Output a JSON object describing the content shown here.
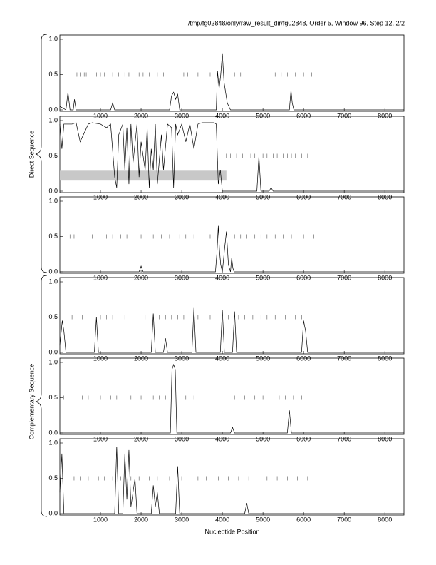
{
  "page": {
    "title": "/tmp/fg02848/only/raw_result_dir/fg02848, Order 5, Window 96, Step 12, 2/2",
    "xlabel": "Nucleotide Position",
    "group_labels": [
      "Direct Sequence",
      "Complementary Sequence"
    ]
  },
  "chart_data": [
    {
      "type": "line",
      "color": "#000000",
      "marker_color": "#555555",
      "marker_level": 0.5,
      "xlim": [
        0,
        8470
      ],
      "ylim": [
        0,
        1
      ],
      "xticks": [
        1000,
        2000,
        3000,
        4000,
        5000,
        6000,
        7000,
        8000
      ],
      "yticks": [
        {
          "value": 0,
          "label": "0.0"
        },
        0.5,
        {
          "value": 1,
          "label": "1.0"
        }
      ],
      "x": [
        0,
        150,
        200,
        250,
        330,
        360,
        400,
        1250,
        1300,
        1350,
        2700,
        2750,
        2800,
        2850,
        2900,
        2950,
        3850,
        3880,
        3920,
        3960,
        4000,
        4040,
        4080,
        4120,
        4200,
        5650,
        5690,
        5720,
        5760,
        8470
      ],
      "values": [
        0.05,
        0,
        0.25,
        0,
        0,
        0.15,
        0,
        0,
        0.1,
        0,
        0,
        0.2,
        0.25,
        0.15,
        0.22,
        0,
        0,
        0.55,
        0.3,
        0.5,
        0.8,
        0.4,
        0.25,
        0.1,
        0,
        0,
        0.28,
        0.1,
        0,
        0
      ],
      "markers": [
        420,
        500,
        600,
        650,
        900,
        1000,
        1100,
        1300,
        1450,
        1600,
        1700,
        1950,
        2050,
        2200,
        2400,
        2550,
        3050,
        3150,
        3250,
        3400,
        3550,
        3700,
        4300,
        4450,
        5300,
        5450,
        5600,
        5800,
        6000,
        6200
      ]
    },
    {
      "type": "line",
      "color": "#000000",
      "marker_color": "#555555",
      "marker_level": 0.5,
      "xlim": [
        0,
        8470
      ],
      "ylim": [
        0,
        1
      ],
      "xticks": [
        1000,
        2000,
        3000,
        4000,
        5000,
        6000,
        7000,
        8000
      ],
      "yticks": [
        {
          "value": 0,
          "label": "0.0"
        },
        0.5,
        {
          "value": 1,
          "label": "1.0"
        }
      ],
      "x": [
        0,
        50,
        100,
        300,
        400,
        500,
        700,
        800,
        1000,
        1150,
        1250,
        1350,
        1400,
        1450,
        1550,
        1600,
        1650,
        1700,
        1750,
        1800,
        1900,
        1950,
        2000,
        2100,
        2150,
        2200,
        2250,
        2300,
        2350,
        2400,
        2500,
        2550,
        2650,
        2750,
        2800,
        2850,
        2900,
        3000,
        3100,
        3200,
        3300,
        3400,
        3500,
        3800,
        3850,
        3900,
        3950,
        4000,
        4050,
        4850,
        4900,
        4950,
        5150,
        5200,
        5250,
        8470
      ],
      "values": [
        0.95,
        0.6,
        0.95,
        0.95,
        0.97,
        0.7,
        0.95,
        0.97,
        0.95,
        0.9,
        0.95,
        0.2,
        0.05,
        0.8,
        0.95,
        0.3,
        0.9,
        0.1,
        0.95,
        0.4,
        0.95,
        0.2,
        0.7,
        0.3,
        0.9,
        0.05,
        0.6,
        0.3,
        0.95,
        0.1,
        0.8,
        0.3,
        0.95,
        0.9,
        0.05,
        0.95,
        0.8,
        0.95,
        0.7,
        0.95,
        0.6,
        0.95,
        0.97,
        0.97,
        0.95,
        0.1,
        0.3,
        0,
        0,
        0,
        0.5,
        0,
        0,
        0.05,
        0,
        0
      ],
      "shaded": {
        "x": [
          0,
          4100
        ],
        "y": [
          0.15,
          0.29
        ]
      },
      "markers": [
        4100,
        4200,
        4350,
        4500,
        4700,
        4800,
        5000,
        5100,
        5250,
        5350,
        5500,
        5600,
        5700,
        5800,
        5950,
        6100
      ]
    },
    {
      "type": "line",
      "color": "#000000",
      "marker_color": "#555555",
      "marker_level": 0.5,
      "xlim": [
        0,
        8470
      ],
      "ylim": [
        0,
        1
      ],
      "xticks": [
        1000,
        2000,
        3000,
        4000,
        5000,
        6000,
        7000,
        8000
      ],
      "yticks": [
        {
          "value": 0,
          "label": "0.0"
        },
        0.5,
        {
          "value": 1,
          "label": "1.0"
        }
      ],
      "x": [
        0,
        1950,
        2000,
        2050,
        3830,
        3870,
        3900,
        3930,
        3960,
        4000,
        4050,
        4100,
        4150,
        4200,
        4230,
        4260,
        4290,
        8470
      ],
      "values": [
        0,
        0,
        0.08,
        0,
        0,
        0.3,
        0.65,
        0.3,
        0.1,
        0,
        0.3,
        0.57,
        0.1,
        0,
        0.2,
        0.05,
        0,
        0
      ],
      "markers": [
        250,
        350,
        450,
        800,
        1150,
        1300,
        1500,
        1650,
        1800,
        2000,
        2150,
        2300,
        2500,
        2700,
        2950,
        3100,
        3300,
        3500,
        3700,
        4300,
        4450,
        4600,
        4800,
        4950,
        5100,
        5300,
        5500,
        5700,
        6000,
        6250
      ]
    },
    {
      "type": "line",
      "color": "#000000",
      "marker_color": "#555555",
      "marker_level": 0.5,
      "xlim": [
        0,
        8470
      ],
      "ylim": [
        0,
        1
      ],
      "xticks": [
        1000,
        2000,
        3000,
        4000,
        5000,
        6000,
        7000,
        8000
      ],
      "yticks": [
        {
          "value": 0,
          "label": "0.0"
        },
        0.5,
        {
          "value": 1,
          "label": "1.0"
        }
      ],
      "x": [
        0,
        60,
        100,
        150,
        850,
        900,
        950,
        2250,
        2300,
        2350,
        2550,
        2600,
        2650,
        3250,
        3300,
        3350,
        3950,
        4000,
        4050,
        4250,
        4300,
        4350,
        5950,
        6000,
        6050,
        6100,
        8470
      ],
      "values": [
        0.1,
        0.45,
        0.3,
        0,
        0,
        0.5,
        0,
        0,
        0.55,
        0,
        0,
        0.2,
        0,
        0,
        0.63,
        0,
        0,
        0.6,
        0,
        0,
        0.58,
        0,
        0,
        0.45,
        0.3,
        0,
        0
      ],
      "markers": [
        150,
        300,
        550,
        1000,
        1150,
        1300,
        1600,
        1800,
        2100,
        2450,
        2600,
        2750,
        2900,
        3050,
        3400,
        3550,
        3700,
        4150,
        4400,
        4550,
        4750,
        4950,
        5100,
        5300,
        5550,
        5800,
        5950
      ]
    },
    {
      "type": "line",
      "color": "#000000",
      "marker_color": "#555555",
      "marker_level": 0.5,
      "xlim": [
        0,
        8470
      ],
      "ylim": [
        0,
        1
      ],
      "xticks": [
        1000,
        2000,
        3000,
        4000,
        5000,
        6000,
        7000,
        8000
      ],
      "yticks": [
        {
          "value": 0,
          "label": "0.0"
        },
        0.5,
        {
          "value": 1,
          "label": "1.0"
        }
      ],
      "x": [
        0,
        2720,
        2760,
        2800,
        2840,
        2880,
        4200,
        4250,
        4300,
        5600,
        5650,
        5700,
        8470
      ],
      "values": [
        0,
        0,
        0.9,
        0.97,
        0.9,
        0,
        0,
        0.08,
        0,
        0,
        0.32,
        0,
        0
      ],
      "markers": [
        100,
        550,
        700,
        1000,
        1250,
        1400,
        1550,
        1750,
        2000,
        2300,
        2450,
        2600,
        3100,
        3300,
        3500,
        3800,
        4300,
        4550,
        4800,
        5000,
        5200,
        5400,
        5550,
        5750,
        5950
      ]
    },
    {
      "type": "line",
      "color": "#000000",
      "marker_color": "#555555",
      "marker_level": 0.5,
      "xlim": [
        0,
        8470
      ],
      "ylim": [
        0,
        1
      ],
      "xticks": [
        1000,
        2000,
        3000,
        4000,
        5000,
        6000,
        7000,
        8000
      ],
      "yticks": [
        {
          "value": 0,
          "label": "0.0"
        },
        0.5,
        {
          "value": 1,
          "label": "1.0"
        }
      ],
      "x": [
        0,
        50,
        100,
        1350,
        1400,
        1450,
        1550,
        1600,
        1650,
        1700,
        1750,
        1800,
        1850,
        1900,
        2250,
        2300,
        2350,
        2400,
        2450,
        2850,
        2900,
        2950,
        4550,
        4600,
        4650,
        8470
      ],
      "values": [
        0.3,
        0.85,
        0,
        0,
        0.95,
        0,
        0,
        0.85,
        0.2,
        0.9,
        0.1,
        0.3,
        0.5,
        0,
        0,
        0.4,
        0.1,
        0.3,
        0,
        0,
        0.67,
        0,
        0,
        0.15,
        0,
        0
      ],
      "markers": [
        350,
        500,
        700,
        950,
        1100,
        1300,
        1500,
        1750,
        1950,
        2200,
        2400,
        2700,
        3000,
        3200,
        3400,
        3600,
        3900,
        4150,
        4400,
        4650,
        4900,
        5100,
        5350,
        5600,
        5850,
        6100
      ]
    }
  ]
}
